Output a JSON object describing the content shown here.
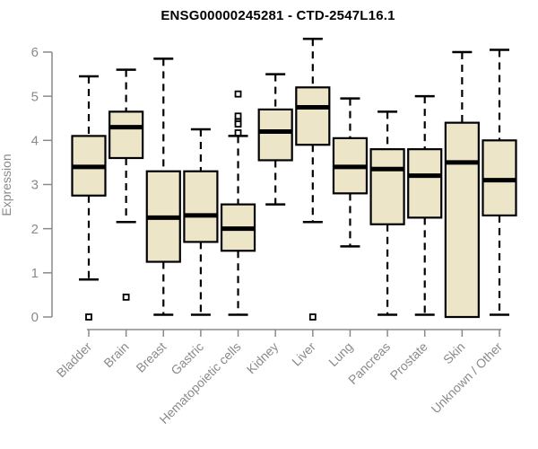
{
  "chart_data": {
    "type": "boxplot",
    "title": "ENSG00000245281 - CTD-2547L16.1",
    "xlabel": "",
    "ylabel": "Expression",
    "ylim": [
      0,
      6
    ],
    "yticks": [
      0,
      1,
      2,
      3,
      4,
      5,
      6
    ],
    "grid": false,
    "legend": "none",
    "colors": {
      "box_fill": "#ECE5C8",
      "box_border": "#000000",
      "median": "#000000",
      "whisker": "#000000",
      "axis": "#8A8A8A",
      "tick_label": "#8A8A8A",
      "title_text": "#000000",
      "background": "#FFFFFF"
    },
    "categories": [
      "Bladder",
      "Brain",
      "Breast",
      "Gastric",
      "Hematopoietic cells",
      "Kidney",
      "Liver",
      "Lung",
      "Pancreas",
      "Prostate",
      "Skin",
      "Unknown / Other"
    ],
    "series": [
      {
        "category": "Bladder",
        "whisker_low": 0.85,
        "q1": 2.75,
        "median": 3.4,
        "q3": 4.1,
        "whisker_high": 5.45,
        "outliers": [
          0.0
        ]
      },
      {
        "category": "Brain",
        "whisker_low": 2.15,
        "q1": 3.6,
        "median": 4.3,
        "q3": 4.65,
        "whisker_high": 5.6,
        "outliers": [
          0.45
        ]
      },
      {
        "category": "Breast",
        "whisker_low": 0.05,
        "q1": 1.25,
        "median": 2.25,
        "q3": 3.3,
        "whisker_high": 5.85,
        "outliers": []
      },
      {
        "category": "Gastric",
        "whisker_low": 0.05,
        "q1": 1.7,
        "median": 2.3,
        "q3": 3.3,
        "whisker_high": 4.25,
        "outliers": []
      },
      {
        "category": "Hematopoietic cells",
        "whisker_low": 0.05,
        "q1": 1.5,
        "median": 2.0,
        "q3": 2.55,
        "whisker_high": 4.1,
        "outliers": [
          5.05,
          4.55,
          4.42,
          4.37,
          4.17
        ]
      },
      {
        "category": "Kidney",
        "whisker_low": 2.55,
        "q1": 3.55,
        "median": 4.2,
        "q3": 4.7,
        "whisker_high": 5.5,
        "outliers": []
      },
      {
        "category": "Liver",
        "whisker_low": 2.15,
        "q1": 3.9,
        "median": 4.75,
        "q3": 5.2,
        "whisker_high": 6.3,
        "outliers": [
          0.0
        ]
      },
      {
        "category": "Lung",
        "whisker_low": 1.6,
        "q1": 2.8,
        "median": 3.4,
        "q3": 4.05,
        "whisker_high": 4.95,
        "outliers": []
      },
      {
        "category": "Pancreas",
        "whisker_low": 0.05,
        "q1": 2.1,
        "median": 3.35,
        "q3": 3.8,
        "whisker_high": 4.65,
        "outliers": []
      },
      {
        "category": "Prostate",
        "whisker_low": 0.05,
        "q1": 2.25,
        "median": 3.2,
        "q3": 3.8,
        "whisker_high": 5.0,
        "outliers": []
      },
      {
        "category": "Skin",
        "whisker_low": 0.0,
        "q1": 0.0,
        "median": 3.5,
        "q3": 4.4,
        "whisker_high": 6.0,
        "outliers": []
      },
      {
        "category": "Unknown / Other",
        "whisker_low": 0.05,
        "q1": 2.3,
        "median": 3.1,
        "q3": 4.0,
        "whisker_high": 6.05,
        "outliers": []
      }
    ]
  }
}
